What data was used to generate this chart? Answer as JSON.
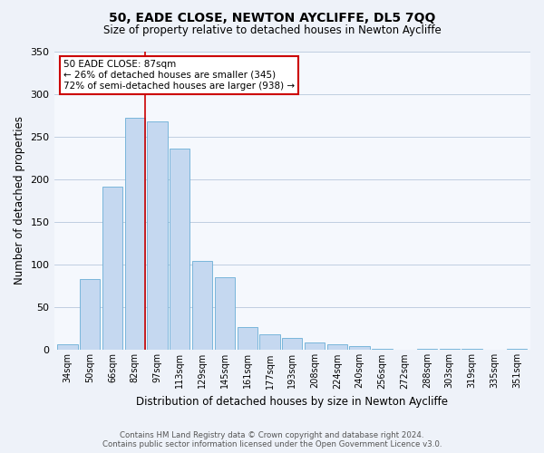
{
  "title": "50, EADE CLOSE, NEWTON AYCLIFFE, DL5 7QQ",
  "subtitle": "Size of property relative to detached houses in Newton Aycliffe",
  "xlabel": "Distribution of detached houses by size in Newton Aycliffe",
  "ylabel": "Number of detached properties",
  "categories": [
    "34sqm",
    "50sqm",
    "66sqm",
    "82sqm",
    "97sqm",
    "113sqm",
    "129sqm",
    "145sqm",
    "161sqm",
    "177sqm",
    "193sqm",
    "208sqm",
    "224sqm",
    "240sqm",
    "256sqm",
    "272sqm",
    "288sqm",
    "303sqm",
    "319sqm",
    "335sqm",
    "351sqm"
  ],
  "values": [
    7,
    83,
    191,
    272,
    268,
    236,
    104,
    85,
    27,
    18,
    14,
    9,
    7,
    5,
    2,
    0,
    2,
    1,
    1,
    0,
    2
  ],
  "bar_color": "#c5d8f0",
  "bar_edge_color": "#6aaed6",
  "marker_bin_index": 3,
  "annotation_title": "50 EADE CLOSE: 87sqm",
  "annotation_line1": "← 26% of detached houses are smaller (345)",
  "annotation_line2": "72% of semi-detached houses are larger (938) →",
  "vline_color": "#cc0000",
  "ylim": [
    0,
    350
  ],
  "yticks": [
    0,
    50,
    100,
    150,
    200,
    250,
    300,
    350
  ],
  "footer_line1": "Contains HM Land Registry data © Crown copyright and database right 2024.",
  "footer_line2": "Contains public sector information licensed under the Open Government Licence v3.0.",
  "bg_color": "#eef2f9",
  "plot_bg_color": "#f5f8fd"
}
